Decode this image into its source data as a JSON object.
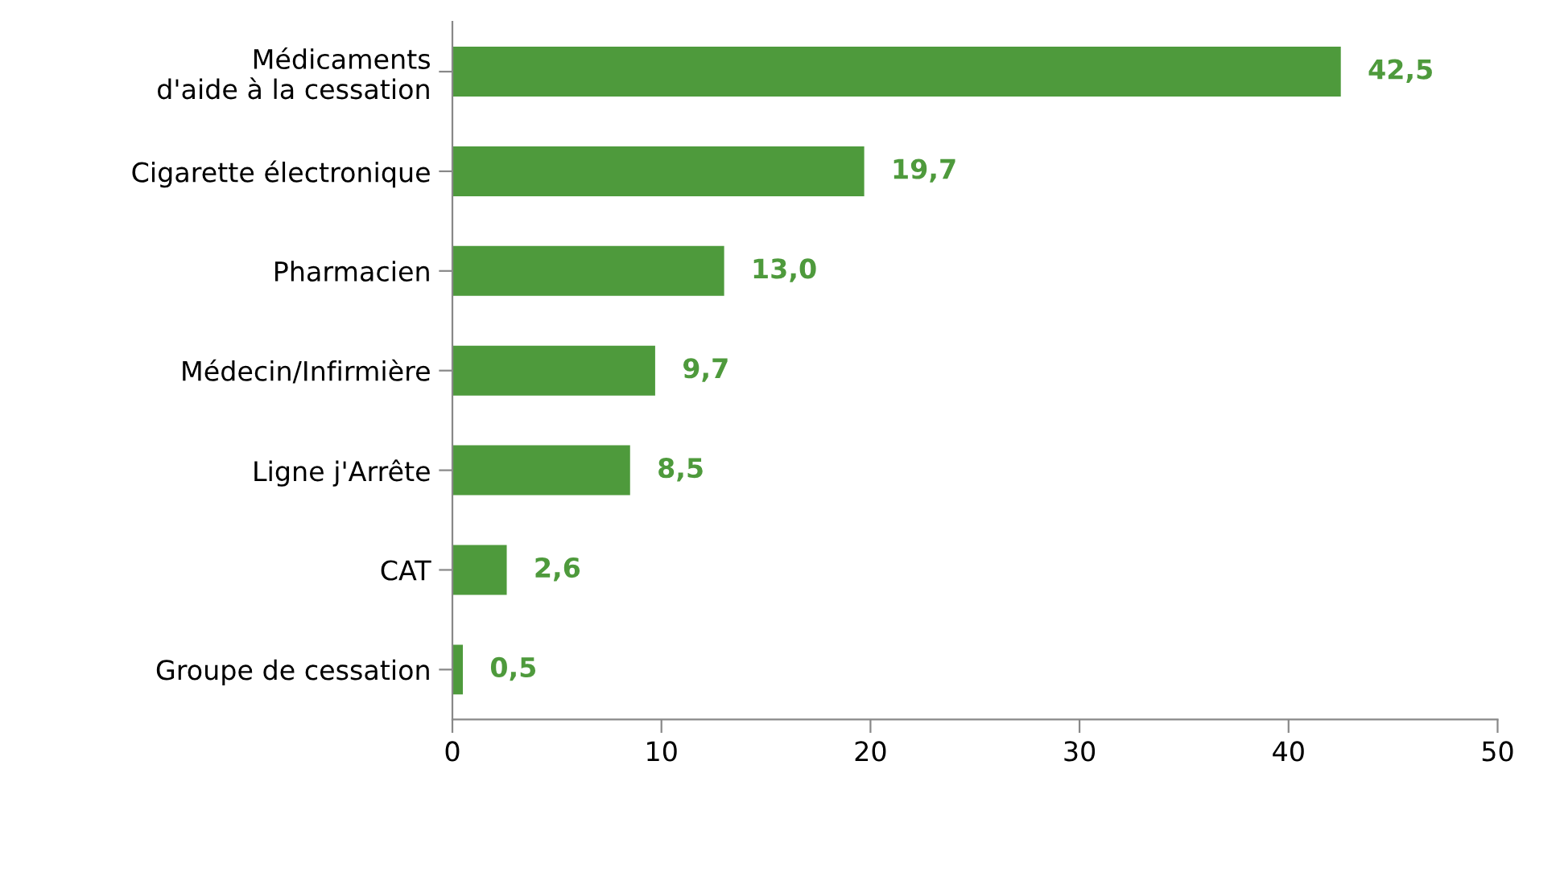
{
  "chart_data": {
    "type": "bar",
    "orientation": "horizontal",
    "categories": [
      "Médicaments\nd'aide à la cessation",
      "Cigarette électronique",
      "Pharmacien",
      "Médecin/Infirmière",
      "Ligne j'Arrête",
      "CAT",
      "Groupe de cessation"
    ],
    "values": [
      42.5,
      19.7,
      13.0,
      9.7,
      8.5,
      2.6,
      0.5
    ],
    "value_labels": [
      "42,5",
      "19,7",
      "13,0",
      "9,7",
      "8,5",
      "2,6",
      "0,5"
    ],
    "color": "#4e9a3c",
    "xlim": [
      0,
      50
    ],
    "xticks": [
      0,
      10,
      20,
      30,
      40,
      50
    ],
    "grid": false,
    "legend": false
  }
}
